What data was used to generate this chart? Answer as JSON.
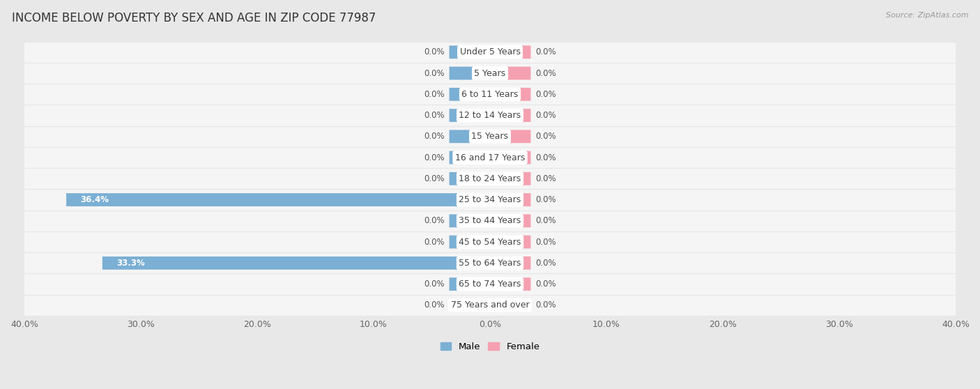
{
  "title": "INCOME BELOW POVERTY BY SEX AND AGE IN ZIP CODE 77987",
  "source": "Source: ZipAtlas.com",
  "categories": [
    "Under 5 Years",
    "5 Years",
    "6 to 11 Years",
    "12 to 14 Years",
    "15 Years",
    "16 and 17 Years",
    "18 to 24 Years",
    "25 to 34 Years",
    "35 to 44 Years",
    "45 to 54 Years",
    "55 to 64 Years",
    "65 to 74 Years",
    "75 Years and over"
  ],
  "male_values": [
    0.0,
    0.0,
    0.0,
    0.0,
    0.0,
    0.0,
    0.0,
    36.4,
    0.0,
    0.0,
    33.3,
    0.0,
    0.0
  ],
  "female_values": [
    0.0,
    0.0,
    0.0,
    0.0,
    0.0,
    0.0,
    0.0,
    0.0,
    0.0,
    0.0,
    0.0,
    0.0,
    0.0
  ],
  "male_color": "#7bafd4",
  "female_color": "#f4a0b0",
  "male_label": "Male",
  "female_label": "Female",
  "xlim": 40.0,
  "background_color": "#e8e8e8",
  "row_bg_color": "#f5f5f5",
  "bar_height": 0.62,
  "stub_size": 3.5,
  "title_fontsize": 12,
  "source_fontsize": 8,
  "tick_label_fontsize": 9,
  "category_fontsize": 9,
  "value_fontsize": 8.5
}
